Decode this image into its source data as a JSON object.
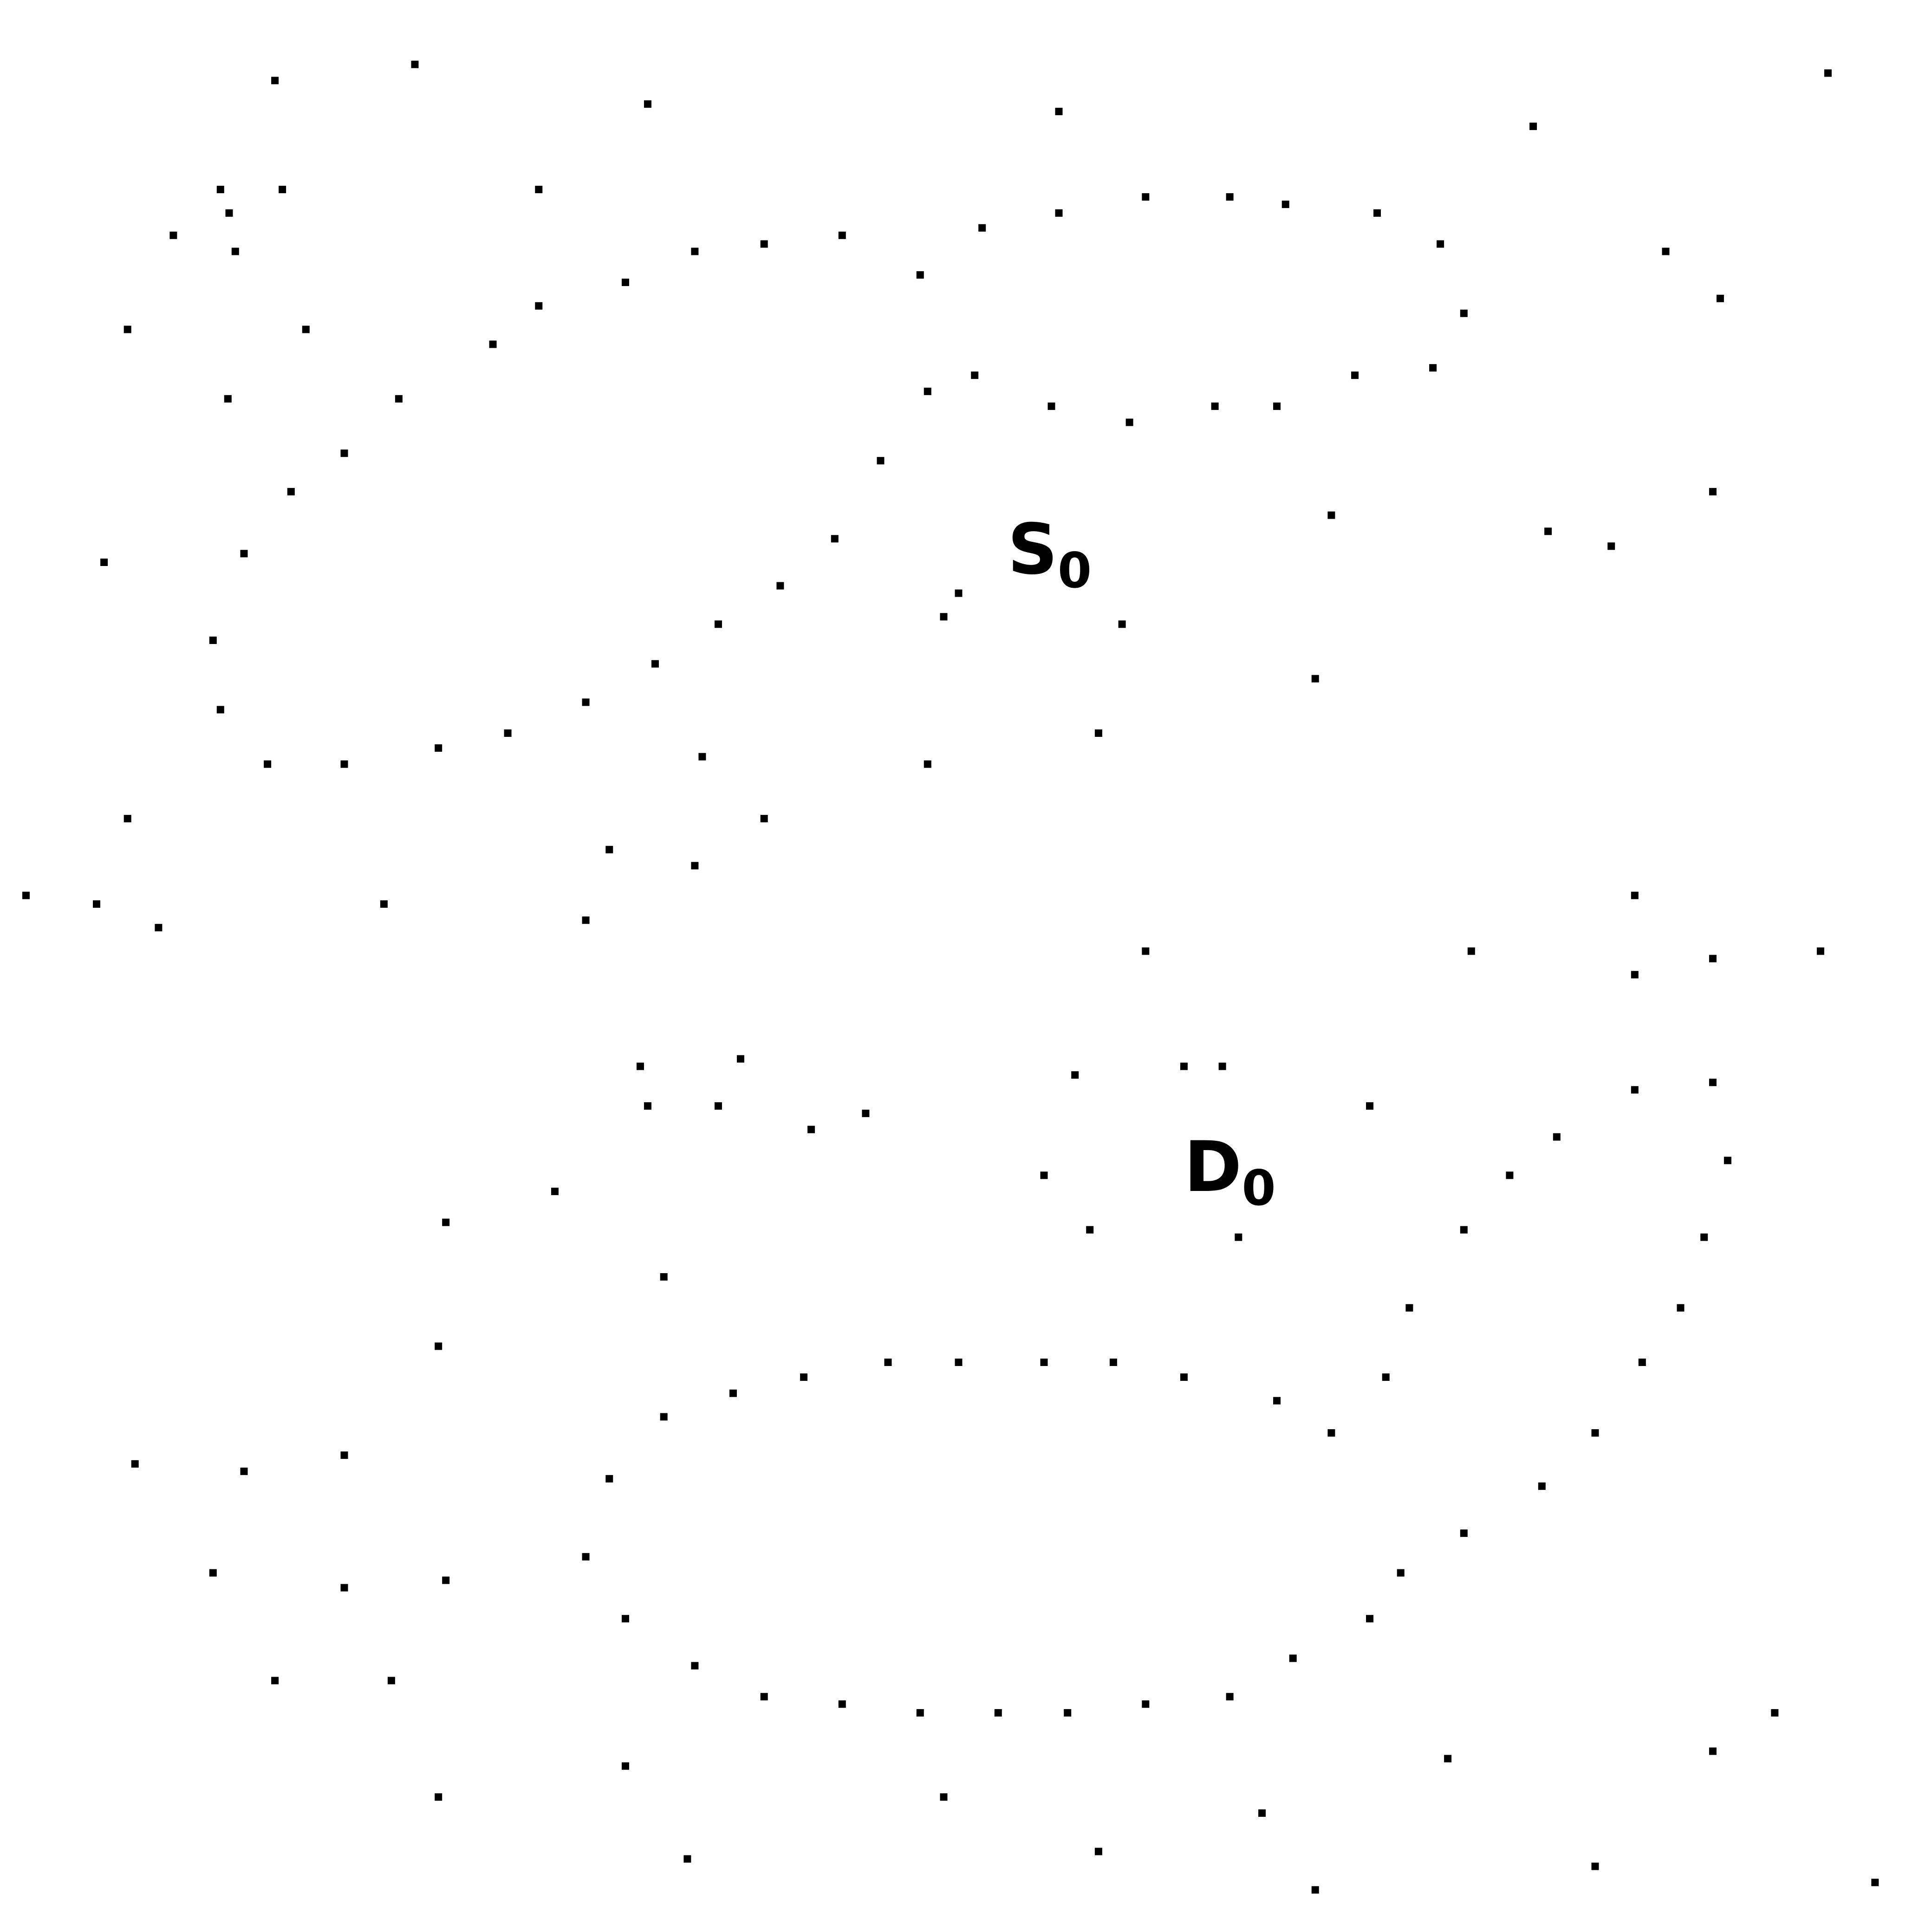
{
  "labels": {
    "s": {
      "main": "S",
      "sub": "0"
    },
    "d": {
      "main": "D",
      "sub": "0"
    }
  },
  "dot_color": "#000000"
}
